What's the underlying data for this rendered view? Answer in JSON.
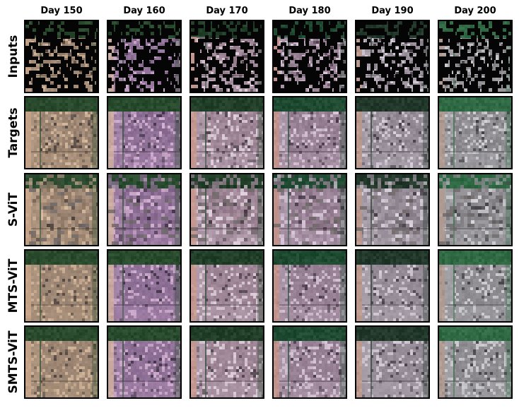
{
  "columns": [
    "Day 150",
    "Day 160",
    "Day 170",
    "Day 180",
    "Day 190",
    "Day 200"
  ],
  "rows": [
    "Inputs",
    "Targets",
    "S-ViT",
    "MTS-ViT",
    "SMTS-ViT"
  ],
  "palettes": {
    "Day 150": {
      "field": "#9c8572",
      "light": "#c9ad92",
      "dark": "#5d5048",
      "strip": "#c8a489",
      "veg": "#2a4a2e"
    },
    "Day 160": {
      "field": "#8e6f96",
      "light": "#c8a6c8",
      "dark": "#4f3f54",
      "strip": "#d2b3a0",
      "veg": "#274b2c"
    },
    "Day 170": {
      "field": "#9d8596",
      "light": "#d6c6d2",
      "dark": "#574a55",
      "strip": "#c99a8e",
      "veg": "#213f28"
    },
    "Day 180": {
      "field": "#988094",
      "light": "#cdbccd",
      "dark": "#544653",
      "strip": "#c69488",
      "veg": "#1f4a32"
    },
    "Day 190": {
      "field": "#958b97",
      "light": "#cbc3cd",
      "dark": "#534c55",
      "strip": "#c09a8c",
      "veg": "#22382a"
    },
    "Day 200": {
      "field": "#8d8b90",
      "light": "#c6c5ca",
      "dark": "#4e4d52",
      "strip": "#b59c92",
      "veg": "#2f6a45"
    }
  }
}
